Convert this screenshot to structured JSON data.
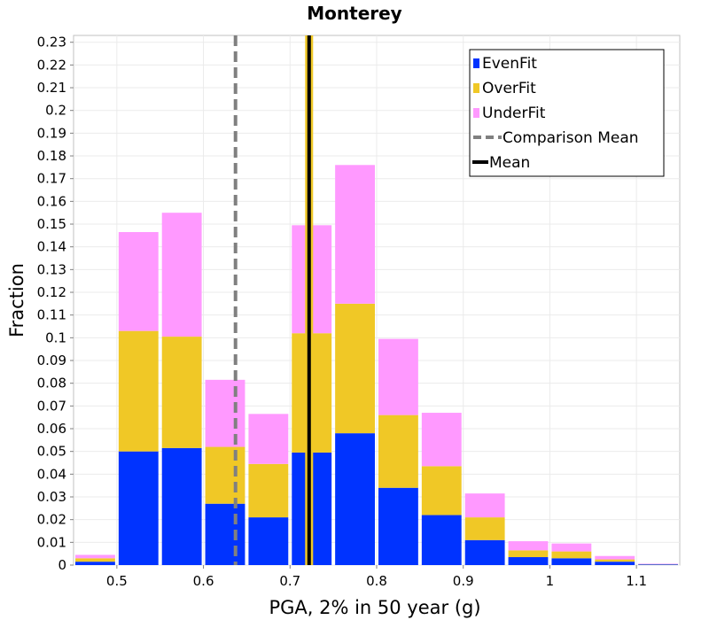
{
  "chart_data": {
    "type": "bar",
    "stacked": true,
    "title": "Monterey",
    "xlabel": "PGA, 2% in 50 year (g)",
    "ylabel": "Fraction",
    "xlim": [
      0.45,
      1.15
    ],
    "ylim": [
      0,
      0.233
    ],
    "grid": true,
    "legend_position": "top-right",
    "bin_width": 0.05,
    "bin_centers": [
      0.475,
      0.525,
      0.575,
      0.625,
      0.675,
      0.725,
      0.775,
      0.825,
      0.875,
      0.925,
      0.975,
      1.025,
      1.075,
      1.125
    ],
    "x_ticks": [
      "0.5",
      "0.6",
      "0.7",
      "0.8",
      "0.9",
      "1",
      "1.1"
    ],
    "x_tick_values": [
      0.5,
      0.6,
      0.7,
      0.8,
      0.9,
      1.0,
      1.1
    ],
    "y_ticks": [
      "0",
      "0.01",
      "0.02",
      "0.03",
      "0.04",
      "0.05",
      "0.06",
      "0.07",
      "0.08",
      "0.09",
      "0.1",
      "0.11",
      "0.12",
      "0.13",
      "0.14",
      "0.15",
      "0.16",
      "0.17",
      "0.18",
      "0.19",
      "0.2",
      "0.21",
      "0.22",
      "0.23"
    ],
    "y_tick_values": [
      0,
      0.01,
      0.02,
      0.03,
      0.04,
      0.05,
      0.06,
      0.07,
      0.08,
      0.09,
      0.1,
      0.11,
      0.12,
      0.13,
      0.14,
      0.15,
      0.16,
      0.17,
      0.18,
      0.19,
      0.2,
      0.21,
      0.22,
      0.23
    ],
    "series": [
      {
        "name": "EvenFit",
        "color": "#0033ff",
        "values": [
          0.0015,
          0.05,
          0.0515,
          0.027,
          0.021,
          0.0495,
          0.058,
          0.034,
          0.022,
          0.011,
          0.0035,
          0.003,
          0.0015,
          0.0003
        ]
      },
      {
        "name": "OverFit",
        "color": "#f0c826",
        "values": [
          0.0015,
          0.053,
          0.049,
          0.025,
          0.0235,
          0.0525,
          0.057,
          0.032,
          0.0215,
          0.01,
          0.003,
          0.003,
          0.001,
          0.0001
        ]
      },
      {
        "name": "UnderFit",
        "color": "#ff99ff",
        "values": [
          0.0015,
          0.0435,
          0.0545,
          0.0295,
          0.022,
          0.0475,
          0.061,
          0.0335,
          0.0235,
          0.0105,
          0.004,
          0.0035,
          0.0015,
          0.0002
        ]
      }
    ],
    "reference_lines": [
      {
        "name": "Comparison Mean",
        "x": 0.637,
        "color": "#808080",
        "style": "dashed"
      },
      {
        "name": "Mean",
        "x": 0.722,
        "color": "#000000",
        "style": "solid",
        "under_color": "#f0c826"
      }
    ],
    "legend": [
      {
        "label": "EvenFit",
        "kind": "box",
        "color": "#0033ff"
      },
      {
        "label": "OverFit",
        "kind": "box",
        "color": "#f0c826"
      },
      {
        "label": "UnderFit",
        "kind": "box",
        "color": "#ff99ff"
      },
      {
        "label": "Comparison Mean",
        "kind": "dash",
        "color": "#808080"
      },
      {
        "label": "Mean",
        "kind": "line",
        "color": "#000000"
      }
    ]
  }
}
